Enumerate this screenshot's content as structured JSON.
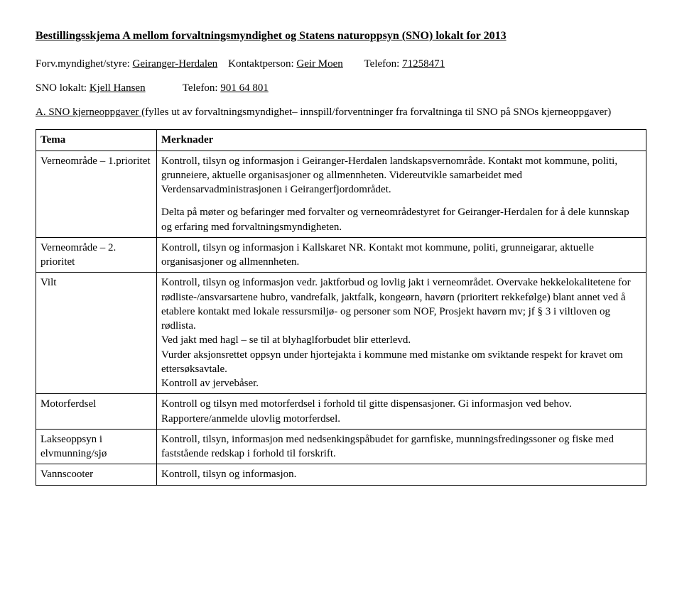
{
  "title": "Bestillingsskjema A mellom forvaltningsmyndighet og Statens naturoppsyn (SNO) lokalt for 2013",
  "line1": {
    "label": "Forv.myndighet/styre:",
    "value": "Geiranger-Herdalen",
    "contact_label": "Kontaktperson:",
    "contact_value": "Geir Moen",
    "phone_label": "Telefon:",
    "phone_value": "71258471"
  },
  "line2": {
    "label": "SNO lokalt:",
    "value": "Kjell Hansen",
    "phone_label": "Telefon:",
    "phone_value": "901 64 801"
  },
  "section_a": {
    "lead": "A. SNO kjerneoppgaver ",
    "rest": "(fylles ut av forvaltningsmyndighet– innspill/forventninger fra forvaltninga til SNO på SNOs kjerneoppgaver)"
  },
  "table": {
    "header_left": "Tema",
    "header_right": "Merknader",
    "rows": [
      {
        "left": "Verneområde – 1.prioritet",
        "right_p1": "Kontroll, tilsyn og informasjon i Geiranger-Herdalen landskapsvernområde. Kontakt mot kommune, politi, grunneiere, aktuelle organisasjoner og allmennheten. Videreutvikle samarbeidet med Verdensarvadministrasjonen i Geirangerfjordområdet.",
        "right_p2": "Delta på møter og befaringer med forvalter og verneområdestyret  for Geiranger-Herdalen for å dele kunnskap og erfaring med forvaltningsmyndigheten."
      },
      {
        "left": "Verneområde – 2. prioritet",
        "right": "Kontroll, tilsyn og informasjon i Kallskaret NR. Kontakt mot kommune, politi, grunneigarar, aktuelle organisasjoner og allmennheten."
      },
      {
        "left": "Vilt",
        "right": "Kontroll, tilsyn og informasjon vedr. jaktforbud og lovlig jakt i verneområdet. Overvake hekkelokalitetene for rødliste-/ansvarsartene hubro, vandrefalk, jaktfalk, kongeørn, havørn (prioritert rekkefølge) blant annet ved å etablere kontakt med lokale ressursmiljø- og personer som NOF, Prosjekt havørn mv; jf § 3 i viltloven og rødlista.\nVed jakt med hagl – se til at blyhaglforbudet blir etterlevd.\nVurder aksjonsrettet oppsyn under hjortejakta i kommune med mistanke om sviktande respekt for kravet om ettersøksavtale.\nKontroll av jervebåser."
      },
      {
        "left": "Motorferdsel",
        "right": "Kontroll og tilsyn med motorferdsel i forhold til gitte dispensasjoner. Gi informasjon ved behov. Rapportere/anmelde ulovlig motorferdsel."
      },
      {
        "left": "Lakseoppsyn i elvmunning/sjø",
        "right": "Kontroll, tilsyn, informasjon med nedsenkingspåbudet for garnfiske, munningsfredingssoner og fiske med faststående redskap i forhold til forskrift."
      },
      {
        "left": "Vannscooter",
        "right": "Kontroll, tilsyn og informasjon."
      }
    ]
  }
}
